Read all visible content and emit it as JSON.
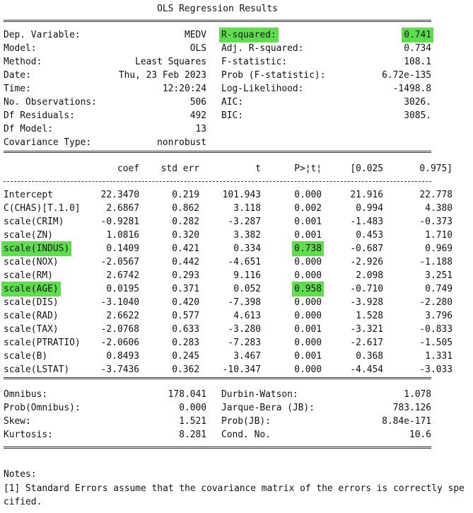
{
  "title": "OLS Regression Results",
  "top_table": {
    "rows": [
      {
        "label": "Dep. Variable:",
        "value": "MEDV",
        "right_label": "R-squared:",
        "right_value": "0.741"
      },
      {
        "label": "Model:",
        "value": "OLS",
        "right_label": "Adj. R-squared:",
        "right_value": "0.734"
      },
      {
        "label": "Method:",
        "value": "Least Squares",
        "right_label": "F-statistic:",
        "right_value": "108.1"
      },
      {
        "label": "Date:",
        "value": "Thu, 23 Feb 2023",
        "right_label": "Prob (F-statistic):",
        "right_value": "6.72e-135"
      },
      {
        "label": "Time:",
        "value": "12:20:24",
        "right_label": "Log-Likelihood:",
        "right_value": "-1498.8"
      },
      {
        "label": "No. Observations:",
        "value": "506",
        "right_label": "AIC:",
        "right_value": "3026."
      },
      {
        "label": "Df Residuals:",
        "value": "492",
        "right_label": "BIC:",
        "right_value": "3085."
      },
      {
        "label": "Df Model:",
        "value": "13"
      },
      {
        "label": "Covariance Type:",
        "value": "nonrobust"
      }
    ]
  },
  "coef_table": {
    "header": [
      "coef",
      "std err",
      "t",
      "P>¦t¦",
      "[0.025",
      "0.975]"
    ],
    "rows": [
      [
        "Intercept",
        "22.3470",
        "0.219",
        "101.943",
        "0.000",
        "21.916",
        "22.778"
      ],
      [
        "C(CHAS)[T.1.0]",
        "2.6867",
        "0.862",
        "3.118",
        "0.002",
        "0.994",
        "4.380"
      ],
      [
        "scale(CRIM)",
        "-0.9281",
        "0.282",
        "-3.287",
        "0.001",
        "-1.483",
        "-0.373"
      ],
      [
        "scale(ZN)",
        "1.0816",
        "0.320",
        "3.382",
        "0.001",
        "0.453",
        "1.710"
      ],
      [
        "scale(INDUS)",
        "0.1409",
        "0.421",
        "0.334",
        "0.738",
        "-0.687",
        "0.969"
      ],
      [
        "scale(NOX)",
        "-2.0567",
        "0.442",
        "-4.651",
        "0.000",
        "-2.926",
        "-1.188"
      ],
      [
        "scale(RM)",
        "2.6742",
        "0.293",
        "9.116",
        "0.000",
        "2.098",
        "3.251"
      ],
      [
        "scale(AGE)",
        "0.0195",
        "0.371",
        "0.052",
        "0.958",
        "-0.710",
        "0.749"
      ],
      [
        "scale(DIS)",
        "-3.1040",
        "0.420",
        "-7.398",
        "0.000",
        "-3.928",
        "-2.280"
      ],
      [
        "scale(RAD)",
        "2.6622",
        "0.577",
        "4.613",
        "0.000",
        "1.528",
        "3.796"
      ],
      [
        "scale(TAX)",
        "-2.0768",
        "0.633",
        "-3.280",
        "0.001",
        "-3.321",
        "-0.833"
      ],
      [
        "scale(PTRATIO)",
        "-2.0606",
        "0.283",
        "-7.283",
        "0.000",
        "-2.617",
        "-1.505"
      ],
      [
        "scale(B)",
        "0.8493",
        "0.245",
        "3.467",
        "0.001",
        "0.368",
        "1.331"
      ],
      [
        "scale(LSTAT)",
        "-3.7436",
        "0.362",
        "-10.347",
        "0.000",
        "-4.454",
        "-3.033"
      ]
    ]
  },
  "bottom_table": {
    "rows": [
      {
        "label": "Omnibus:",
        "value": "178.041",
        "right_label": "Durbin-Watson:",
        "right_value": "1.078"
      },
      {
        "label": "Prob(Omnibus):",
        "value": "0.000",
        "right_label": "Jarque-Bera (JB):",
        "right_value": "783.126"
      },
      {
        "label": "Skew:",
        "value": "1.521",
        "right_label": "Prob(JB):",
        "right_value": "8.84e-171"
      },
      {
        "label": "Kurtosis:",
        "value": "8.281",
        "right_label": "Cond. No.",
        "right_value": "10.6"
      }
    ]
  },
  "notes": {
    "heading": "Notes:",
    "items": [
      "[1] Standard Errors assume that the covariance matrix of the errors is correctly specified."
    ]
  }
}
